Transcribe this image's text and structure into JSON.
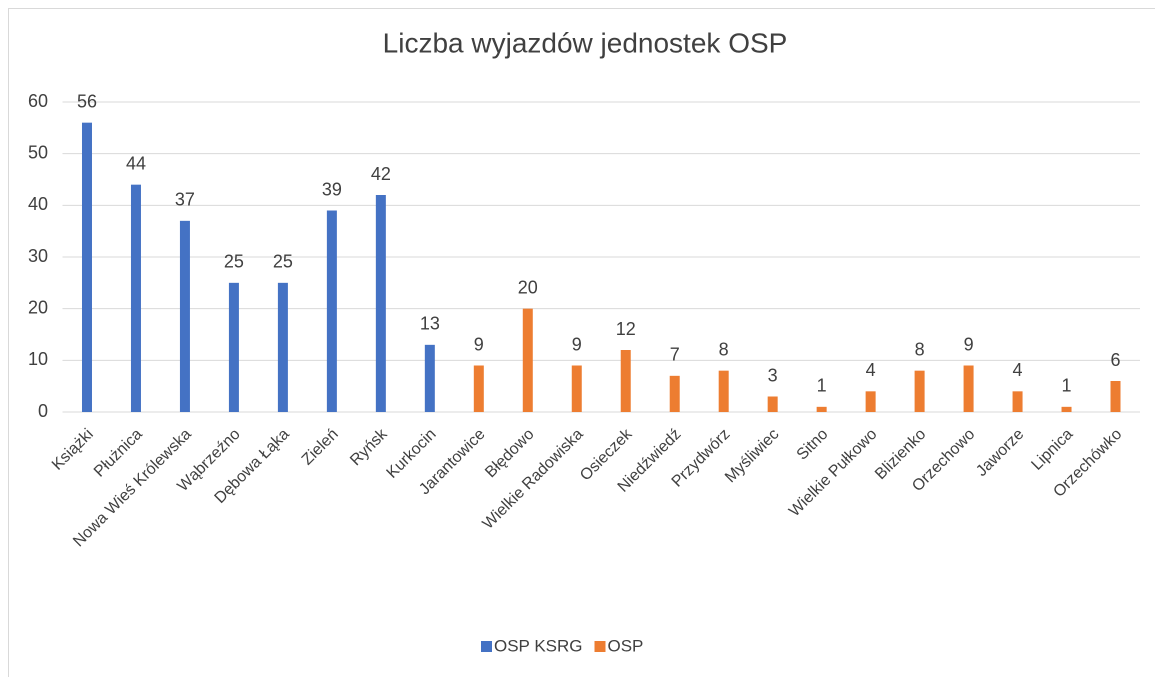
{
  "chart_data": {
    "type": "bar",
    "title": "Liczba wyjazdów jednostek OSP",
    "categories": [
      "Książki",
      "Płużnica",
      "Nowa Wieś Królewska",
      "Wąbrzeźno",
      "Dębowa Łąka",
      "Zieleń",
      "Ryńsk",
      "Kurkocin",
      "Jarantowice",
      "Błędowo",
      "Wielkie Radowiska",
      "Osieczek",
      "Niedźwiedź",
      "Przydwórz",
      "Myśliwiec",
      "Sitno",
      "Wielkie Pułkowo",
      "Blizienko",
      "Orzechowo",
      "Jaworze",
      "Lipnica",
      "Orzechówko"
    ],
    "series": [
      {
        "name": "OSP KSRG",
        "color": "#4472c4",
        "values": [
          56,
          44,
          37,
          25,
          25,
          39,
          42,
          13,
          null,
          null,
          null,
          null,
          null,
          null,
          null,
          null,
          null,
          null,
          null,
          null,
          null,
          null
        ]
      },
      {
        "name": "OSP",
        "color": "#ed7d31",
        "values": [
          null,
          null,
          null,
          null,
          null,
          null,
          null,
          null,
          9,
          20,
          9,
          12,
          7,
          8,
          3,
          1,
          4,
          8,
          9,
          4,
          1,
          6
        ]
      }
    ],
    "ylim": [
      0,
      60
    ],
    "yticks": [
      0,
      10,
      20,
      30,
      40,
      50,
      60
    ],
    "grid": true,
    "legend": "bottom"
  }
}
